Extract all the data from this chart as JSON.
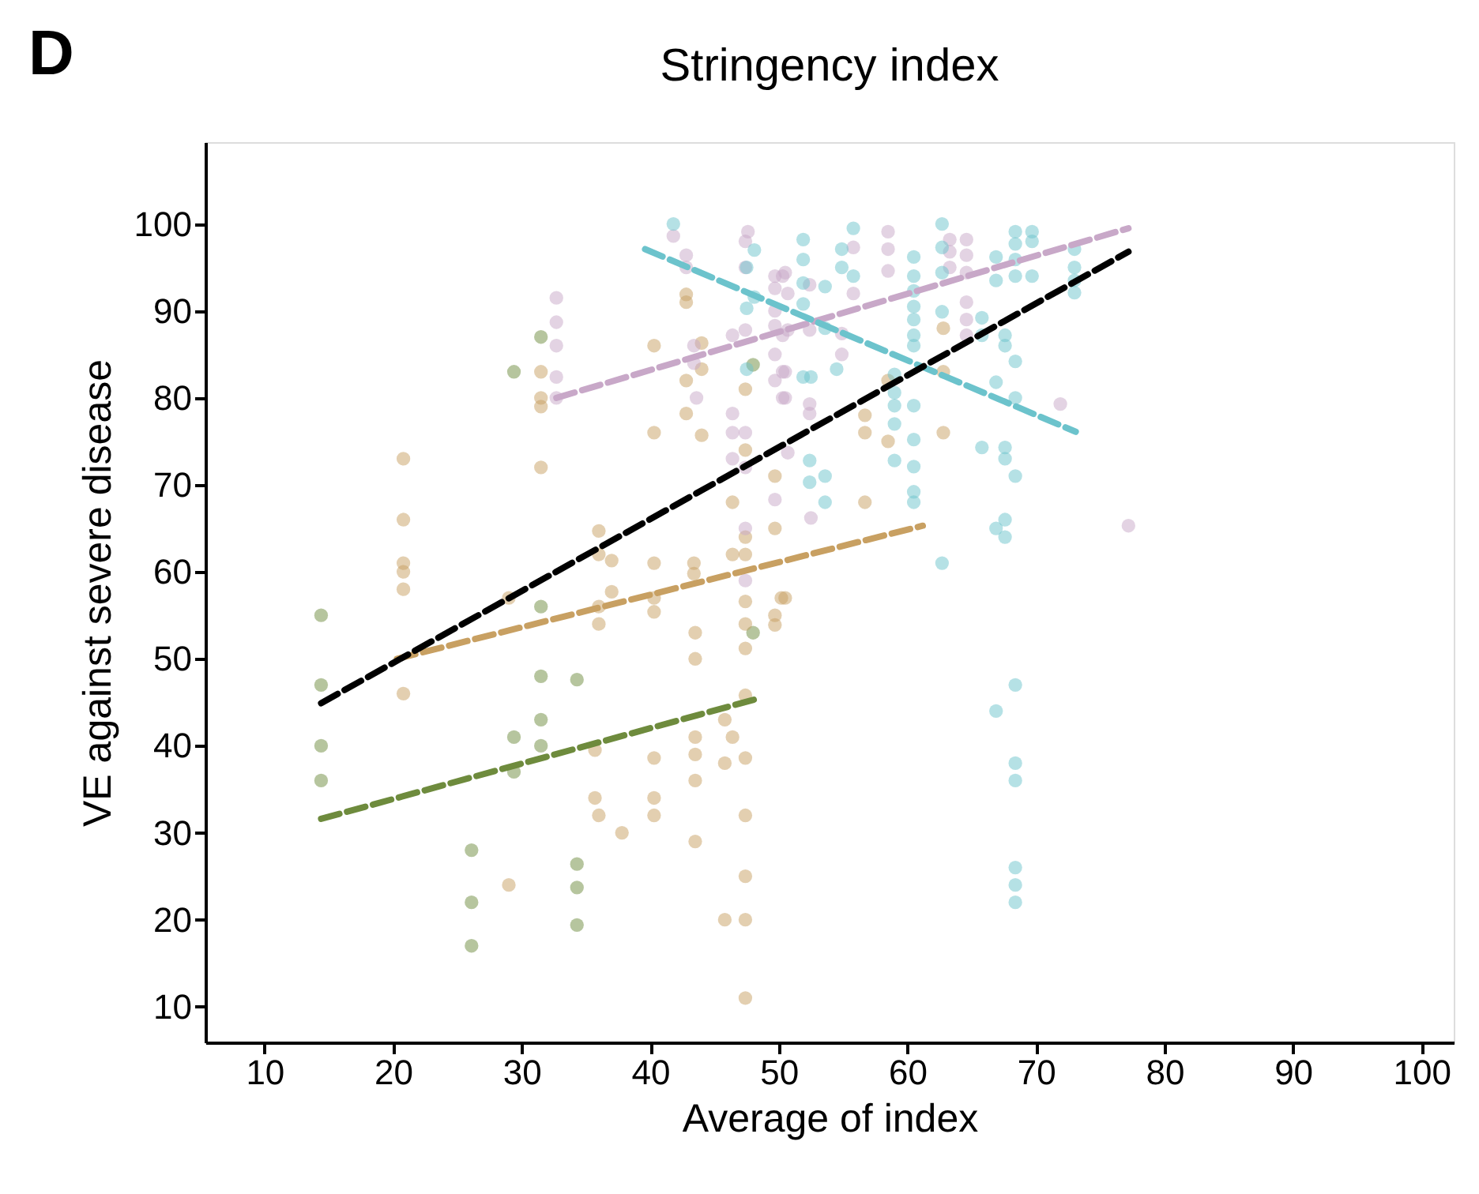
{
  "chart_data": {
    "type": "scatter",
    "title": "Stringency index",
    "xlabel": "Average of index",
    "ylabel": "VE against severe disease",
    "annotations": [
      "D"
    ],
    "xlim": [
      5.4,
      102.5
    ],
    "ylim": [
      5.9,
      109.4
    ],
    "xticks": [
      10,
      20,
      30,
      40,
      50,
      60,
      70,
      80,
      90,
      100
    ],
    "yticks": [
      10,
      20,
      30,
      40,
      50,
      60,
      70,
      80,
      90,
      100
    ],
    "grid": false,
    "legend": false,
    "line_style": "dashed",
    "series": [
      {
        "marker": "circle",
        "color": "#6e8b3d",
        "x": [
          14.4,
          14.4,
          14.4,
          14.4,
          29.4,
          31.5,
          31.5,
          31.5,
          31.5,
          31.5,
          29.4,
          29.4,
          26.1,
          26.1,
          26.1,
          34.3,
          34.3,
          34.3,
          34.3,
          48,
          48
        ],
        "values": [
          55,
          47,
          40,
          36,
          83,
          87,
          56,
          48,
          43,
          40,
          41,
          37,
          28,
          22,
          17,
          47.6,
          26.4,
          23.7,
          19.4,
          83.8,
          53
        ]
      },
      {
        "marker": "circle",
        "color": "#c8a062",
        "x": [
          42.8,
          42.8,
          40.3,
          44,
          44,
          42.8,
          42.8,
          44,
          40.3,
          47.4,
          47.4,
          46.4,
          49.7,
          49.7,
          36,
          36,
          37,
          40.3,
          43.4,
          47.4,
          47.4,
          46.4,
          37,
          36,
          36,
          40.3,
          40.3,
          43.4,
          47.4,
          47.4,
          49.7,
          49.7,
          50.2,
          43.5,
          43.5,
          47.4,
          47.4,
          45.8,
          46.4,
          45.8,
          47.4,
          43.5,
          43.5,
          43.5,
          43.5,
          40.3,
          40.3,
          40.3,
          35.7,
          35.7,
          36,
          37.8,
          47.4,
          47.4,
          45.8,
          47.4,
          47.4,
          20.8,
          20.8,
          20.8,
          20.8,
          20.8,
          20.8,
          31.5,
          31.5,
          31.5,
          31.5,
          29,
          29,
          62.8,
          56.7,
          56.7,
          58.5,
          58.5,
          62.8,
          62.8,
          56.7,
          50.5
        ],
        "values": [
          91.9,
          91,
          86,
          86.3,
          83.3,
          82,
          78.2,
          75.7,
          76,
          81,
          74,
          68,
          71,
          65,
          64.7,
          62,
          61.3,
          61,
          61,
          64,
          62,
          62,
          57.7,
          56,
          54,
          57,
          55.4,
          59.8,
          56.6,
          54,
          55,
          53.9,
          57,
          53,
          50,
          51.2,
          45.8,
          43,
          41,
          38,
          38.6,
          41,
          39,
          36,
          29,
          38.6,
          34,
          32,
          39.5,
          34,
          32,
          30,
          32,
          25,
          20,
          20,
          11,
          73,
          66,
          61,
          60,
          58,
          46,
          83,
          80,
          79,
          72,
          57,
          24,
          88,
          78,
          76,
          82,
          75,
          83,
          76,
          68,
          57
        ]
      },
      {
        "marker": "circle",
        "color": "#c8a8c8",
        "x": [
          32.7,
          32.7,
          32.7,
          32.7,
          32.7,
          41.8,
          42.8,
          42.8,
          47.6,
          47.4,
          47.4,
          49.7,
          50.3,
          49.7,
          49.7,
          49.7,
          50.7,
          50.3,
          49.7,
          50.3,
          49.7,
          50.3,
          43.4,
          43.4,
          43.6,
          46.4,
          47.4,
          46.4,
          46.4,
          47.4,
          46.4,
          47.4,
          47.4,
          47.4,
          49.7,
          50.7,
          50.5,
          50.7,
          50.5,
          50.5,
          52.4,
          52.4,
          52.4,
          52.4,
          55.8,
          55.8,
          54.9,
          54.9,
          58.5,
          58.5,
          58.5,
          63.3,
          63.3,
          63.3,
          64.6,
          64.6,
          64.6,
          64.6,
          64.6,
          64.6,
          71.9,
          77.2,
          52.5
        ],
        "values": [
          91.5,
          88.7,
          86,
          82.4,
          80,
          98.6,
          96.4,
          95,
          99.1,
          98,
          95,
          94,
          94,
          92.6,
          90,
          88.3,
          92,
          87.2,
          85,
          83,
          82,
          80,
          86,
          84,
          80,
          87.2,
          87.8,
          78.2,
          76,
          76,
          73,
          72,
          65,
          59,
          68.3,
          73.7,
          94.4,
          87.8,
          83,
          80,
          93,
          87.8,
          79.3,
          78.2,
          97.3,
          92,
          87.4,
          85,
          99.1,
          97.1,
          94.6,
          98.2,
          96.8,
          95,
          98.2,
          96.4,
          94.4,
          91,
          89,
          87.2,
          79.3,
          65.3,
          66.2
        ]
      },
      {
        "marker": "circle",
        "color": "#6cc3cc",
        "x": [
          41.8,
          47.5,
          47.5,
          48.1,
          47.5,
          48.1,
          51.9,
          51.9,
          51.9,
          51.9,
          52.4,
          52.4,
          51.9,
          53.6,
          53.6,
          55.8,
          54.9,
          54.9,
          55.8,
          52.5,
          54.5,
          53.6,
          53.6,
          60.5,
          60.5,
          60.5,
          60.5,
          60.5,
          60.5,
          60.5,
          59,
          59,
          59,
          59,
          59,
          60.5,
          60.5,
          60.5,
          60.5,
          60.5,
          62.7,
          62.7,
          62.7,
          62.7,
          62.7,
          66.9,
          65.8,
          65.8,
          66.9,
          68.4,
          68.4,
          68.4,
          68.4,
          69.7,
          69.7,
          69.7,
          67.6,
          67.6,
          68.4,
          66.9,
          68.4,
          65.8,
          67.6,
          67.6,
          68.4,
          67.6,
          66.9,
          67.6,
          68.4,
          66.9,
          68.4,
          68.4,
          68.4,
          68.4,
          68.4,
          73,
          73,
          73,
          73
        ],
        "values": [
          100,
          95,
          90.3,
          91.6,
          83.3,
          97,
          98.2,
          95.9,
          90.8,
          82.4,
          72.8,
          70.3,
          93.2,
          92.8,
          88,
          99.5,
          97.1,
          95,
          94,
          82.4,
          83.3,
          71,
          68,
          96.2,
          94,
          92.3,
          90.5,
          89,
          87.2,
          86,
          82.7,
          80.6,
          79.1,
          77,
          72.8,
          79.1,
          75.2,
          72.1,
          69.2,
          68,
          100,
          97.3,
          94.4,
          89.9,
          61,
          96.2,
          89.2,
          87.2,
          93.5,
          99.1,
          97.7,
          95.9,
          94,
          99.1,
          98,
          94,
          87.2,
          86,
          84.2,
          81.8,
          80,
          74.3,
          74.3,
          73,
          71,
          66,
          65,
          64,
          47,
          44,
          38,
          36,
          26,
          24,
          22,
          97.1,
          95,
          93.5,
          92.1
        ]
      },
      {
        "type": "line",
        "color": "#6e8b3d",
        "x": [
          14.4,
          48.3
        ],
        "values": [
          31.6,
          45.4
        ]
      },
      {
        "type": "line",
        "color": "#c8a062",
        "x": [
          20.3,
          61.2
        ],
        "values": [
          50.0,
          65.3
        ]
      },
      {
        "type": "line",
        "color": "#c8a8c8",
        "x": [
          32.7,
          77.2
        ],
        "values": [
          80,
          99.5
        ]
      },
      {
        "type": "line",
        "color": "#6cc3cc",
        "x": [
          39.6,
          73.1
        ],
        "values": [
          97.1,
          76.1
        ]
      },
      {
        "type": "line",
        "color": "#000000",
        "x": [
          14.4,
          77.2
        ],
        "values": [
          44.9,
          96.8
        ]
      }
    ]
  }
}
